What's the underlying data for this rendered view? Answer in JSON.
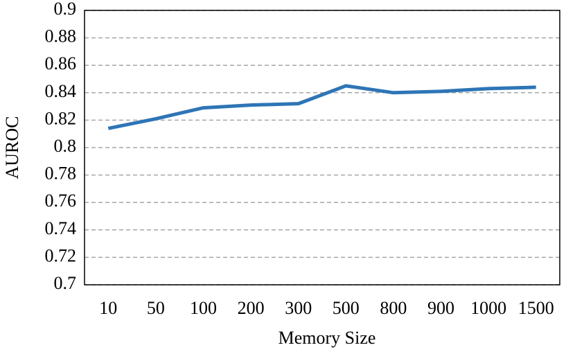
{
  "chart_data": {
    "type": "line",
    "x_label": "Memory Size",
    "y_label": "AUROC",
    "categories": [
      "10",
      "50",
      "100",
      "200",
      "300",
      "500",
      "800",
      "900",
      "1000",
      "1500"
    ],
    "series": [
      {
        "name": "AUROC",
        "color": "#2e75b6",
        "values": [
          0.814,
          0.821,
          0.829,
          0.831,
          0.832,
          0.845,
          0.84,
          0.841,
          0.843,
          0.844
        ]
      }
    ],
    "ylim": [
      0.7,
      0.9
    ],
    "yticks": [
      0.7,
      0.72,
      0.74,
      0.76,
      0.78,
      0.8,
      0.82,
      0.84,
      0.86,
      0.88,
      0.9
    ],
    "grid": true
  }
}
